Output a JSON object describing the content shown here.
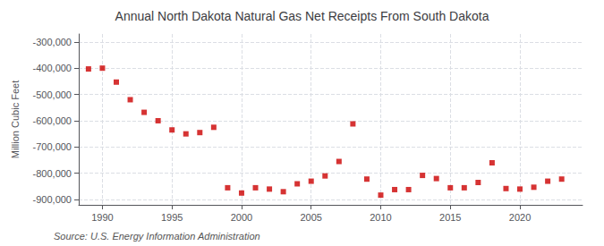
{
  "chart_data": {
    "type": "scatter",
    "title": "Annual North Dakota Natural Gas Net Receipts From South Dakota",
    "ylabel": "Million Cubic Feet",
    "annotations": [
      "Source: U.S. Energy Information Administration"
    ],
    "x": [
      1989,
      1990,
      1991,
      1992,
      1993,
      1994,
      1995,
      1996,
      1997,
      1998,
      1999,
      2000,
      2001,
      2002,
      2003,
      2004,
      2005,
      2006,
      2007,
      2008,
      2009,
      2010,
      2011,
      2012,
      2013,
      2014,
      2015,
      2016,
      2017,
      2018,
      2019,
      2020,
      2021,
      2022,
      2023
    ],
    "values": [
      -403000,
      -400000,
      -453000,
      -520000,
      -568000,
      -600000,
      -635000,
      -650000,
      -645000,
      -625000,
      -855000,
      -875000,
      -855000,
      -860000,
      -870000,
      -840000,
      -830000,
      -810000,
      -755000,
      -612000,
      -822000,
      -883000,
      -862000,
      -862000,
      -808000,
      -820000,
      -855000,
      -855000,
      -835000,
      -760000,
      -858000,
      -860000,
      -853000,
      -830000,
      -822000
    ],
    "color": "#cc0000",
    "marker": "square",
    "xlim": [
      1988.3,
      2024.5
    ],
    "xticks": [
      1990,
      1995,
      2000,
      2005,
      2010,
      2015,
      2020
    ],
    "ylim": [
      -920000,
      -270000
    ],
    "yticks": [
      {
        "value": -900000,
        "label": "-900,000"
      },
      {
        "value": -800000,
        "label": "-800,000"
      },
      {
        "value": -700000,
        "label": "-700,000"
      },
      {
        "value": -600000,
        "label": "-600,000"
      },
      {
        "value": -500000,
        "label": "-500,000"
      },
      {
        "value": -400000,
        "label": "-400,000"
      },
      {
        "value": -300000,
        "label": "-300,000"
      }
    ],
    "grid": true
  }
}
